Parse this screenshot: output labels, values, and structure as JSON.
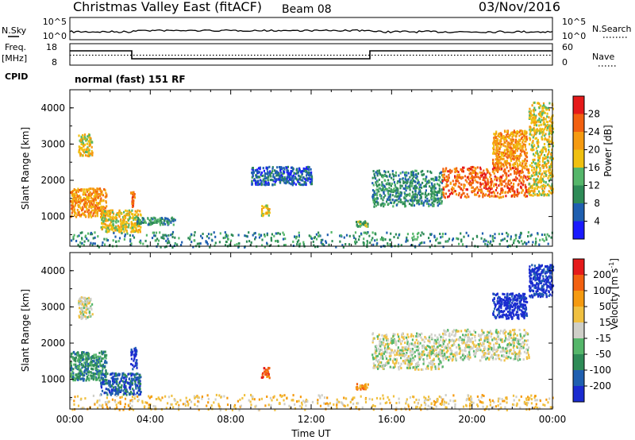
{
  "header": {
    "title": "Christmas Valley East (fitACF)",
    "beam": "Beam 08",
    "date": "03/Nov/2016"
  },
  "noise_panel": {
    "left_label": "N.Sky",
    "right_label": "N.Search",
    "left_ticks": [
      "10^5",
      "10^0"
    ],
    "right_ticks": [
      "10^5",
      "10^0"
    ]
  },
  "freq_panel": {
    "left_label_1": "Freq.",
    "left_label_2": "[MHz]",
    "left_ticks": [
      "18",
      "8"
    ],
    "right_label": "Nave",
    "right_ticks": [
      "60",
      "0"
    ],
    "cpid_label": "CPID",
    "cpid_text": "normal (fast) 151 RF"
  },
  "chart_data": [
    {
      "type": "heatmap",
      "name": "Power",
      "ylabel": "Slant Range [km]",
      "xlabel": "",
      "ylim": [
        180,
        4500
      ],
      "yticks": [
        "1000",
        "2000",
        "3000",
        "4000"
      ],
      "xlim_hours": [
        0,
        24
      ],
      "colorbar_label": "Power [dB]",
      "colorbar_ticks": [
        "4",
        "8",
        "12",
        "16",
        "20",
        "24",
        "28"
      ],
      "colors": [
        "#1a1aff",
        "#1f5fb0",
        "#2e8b57",
        "#55b66a",
        "#f0c010",
        "#f59a10",
        "#f26010",
        "#e51a1a"
      ],
      "features": [
        {
          "t0": 0.0,
          "t1": 1.8,
          "r0": 1000,
          "r1": 1800,
          "level": 5
        },
        {
          "t0": 0.4,
          "t1": 1.1,
          "r0": 2700,
          "r1": 3300,
          "level": 4
        },
        {
          "t0": 1.5,
          "t1": 3.5,
          "r0": 600,
          "r1": 1200,
          "level": 4
        },
        {
          "t0": 3.0,
          "t1": 3.2,
          "r0": 1300,
          "r1": 1700,
          "level": 6
        },
        {
          "t0": 3.3,
          "t1": 5.2,
          "r0": 800,
          "r1": 1000,
          "level": 2
        },
        {
          "t0": 9.5,
          "t1": 9.9,
          "r0": 1050,
          "r1": 1350,
          "level": 4
        },
        {
          "t0": 14.2,
          "t1": 14.8,
          "r0": 750,
          "r1": 900,
          "level": 3
        },
        {
          "t0": 9.0,
          "t1": 12.0,
          "r0": 1900,
          "r1": 2400,
          "level": 1
        },
        {
          "t0": 15.0,
          "t1": 18.5,
          "r0": 1300,
          "r1": 2300,
          "level": 2
        },
        {
          "t0": 18.5,
          "t1": 22.8,
          "r0": 1550,
          "r1": 2400,
          "level": 6
        },
        {
          "t0": 21.0,
          "t1": 22.7,
          "r0": 2400,
          "r1": 3400,
          "level": 5
        },
        {
          "t0": 22.8,
          "t1": 24.0,
          "r0": 1600,
          "r1": 4200,
          "level": 4
        },
        {
          "t0": 0.0,
          "t1": 24.0,
          "r0": 180,
          "r1": 600,
          "level": 2
        }
      ]
    },
    {
      "type": "heatmap",
      "name": "Velocity",
      "ylabel": "Slant Range [km]",
      "xlabel": "Time UT",
      "ylim": [
        180,
        4500
      ],
      "yticks": [
        "1000",
        "2000",
        "3000",
        "4000"
      ],
      "xticks": [
        "00:00",
        "04:00",
        "08:00",
        "12:00",
        "16:00",
        "20:00",
        "00:00"
      ],
      "xlim_hours": [
        0,
        24
      ],
      "colorbar_label": "Velocity [m s",
      "colorbar_label_sup": "-1",
      "colorbar_ticks": [
        "200",
        "100",
        "50",
        "15",
        "-15",
        "-50",
        "-100",
        "-200"
      ],
      "colors": [
        "#1a2bd0",
        "#1f5fb0",
        "#2e8b57",
        "#55b66a",
        "#cfcfc8",
        "#f0c040",
        "#f59a10",
        "#f26010",
        "#e51a1a"
      ],
      "features": [
        {
          "t0": 0.0,
          "t1": 1.8,
          "r0": 1000,
          "r1": 1800,
          "level": 2
        },
        {
          "t0": 0.4,
          "t1": 1.1,
          "r0": 2700,
          "r1": 3300,
          "level": 4
        },
        {
          "t0": 1.5,
          "t1": 3.5,
          "r0": 600,
          "r1": 1200,
          "level": 1
        },
        {
          "t0": 3.0,
          "t1": 3.3,
          "r0": 1300,
          "r1": 1900,
          "level": 0
        },
        {
          "t0": 9.5,
          "t1": 9.9,
          "r0": 1050,
          "r1": 1350,
          "level": 7
        },
        {
          "t0": 14.2,
          "t1": 14.8,
          "r0": 750,
          "r1": 900,
          "level": 6
        },
        {
          "t0": 15.0,
          "t1": 18.5,
          "r0": 1300,
          "r1": 2300,
          "level": 4
        },
        {
          "t0": 18.5,
          "t1": 22.8,
          "r0": 1550,
          "r1": 2400,
          "level": 4
        },
        {
          "t0": 21.0,
          "t1": 22.7,
          "r0": 2700,
          "r1": 3400,
          "level": 0
        },
        {
          "t0": 22.8,
          "t1": 24.0,
          "r0": 3300,
          "r1": 4200,
          "level": 0
        },
        {
          "t0": 0.0,
          "t1": 24.0,
          "r0": 180,
          "r1": 600,
          "level": 5
        }
      ]
    }
  ]
}
